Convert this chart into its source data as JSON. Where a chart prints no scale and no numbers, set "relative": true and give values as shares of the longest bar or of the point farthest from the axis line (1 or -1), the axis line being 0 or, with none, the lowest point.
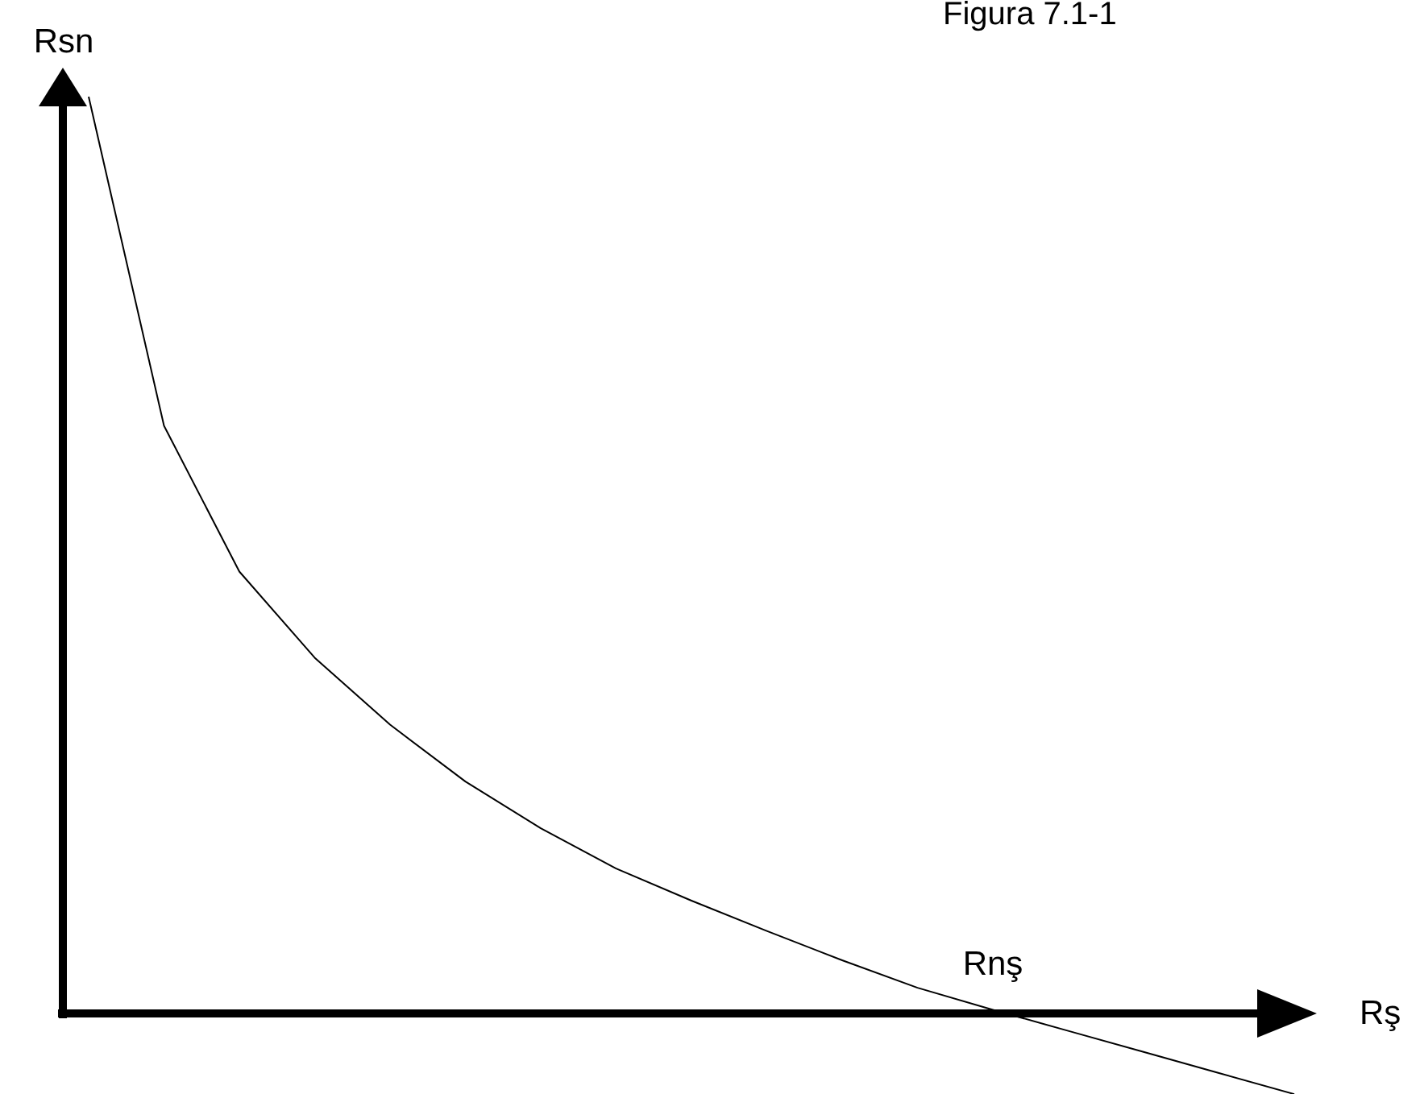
{
  "chart_data": {
    "type": "line",
    "title": "Figura 7.1-1",
    "xlabel": "Rş",
    "ylabel": "Rsn",
    "relative": true,
    "categories": [
      null,
      null,
      null,
      null,
      null,
      null,
      null,
      null,
      null,
      null,
      null,
      null,
      null,
      null,
      null,
      null,
      null
    ],
    "series": [
      {
        "color": "#000000",
        "values": [
          1.0,
          0.641,
          0.482,
          0.388,
          0.315,
          0.253,
          0.202,
          0.158,
          0.123,
          0.09,
          0.058,
          0.028,
          0.004,
          -0.019,
          -0.042,
          -0.065,
          -0.088
        ]
      }
    ],
    "annotations": [
      "Rnş"
    ]
  }
}
